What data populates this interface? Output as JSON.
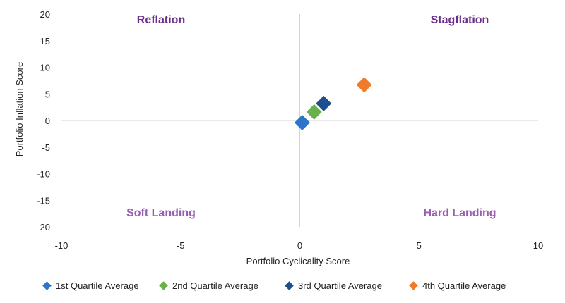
{
  "chart_data": {
    "type": "scatter",
    "xlabel": "Portfolio Cyclicality Score",
    "ylabel": "Portfolio Inflation Score",
    "xlim": [
      -10,
      10
    ],
    "ylim": [
      -20,
      20
    ],
    "x_ticks": [
      -10,
      -5,
      0,
      5,
      10
    ],
    "y_ticks": [
      20,
      15,
      10,
      5,
      0,
      -5,
      -10,
      -15,
      -20
    ],
    "quadrant_labels": {
      "top_left": "Reflation",
      "top_right": "Stagflation",
      "bottom_left": "Soft Landing",
      "bottom_right": "Hard Landing"
    },
    "grid": false,
    "legend_position": "bottom",
    "series": [
      {
        "name": "1st Quartile Average",
        "color": "#2e75c9",
        "x": 0.1,
        "y": -0.4
      },
      {
        "name": "2nd Quartile Average",
        "color": "#6ab04c",
        "x": 0.6,
        "y": 1.6
      },
      {
        "name": "3rd Quartile Average",
        "color": "#1c4f91",
        "x": 1.0,
        "y": 3.2
      },
      {
        "name": "4th Quartile Average",
        "color": "#f07b2b",
        "x": 2.7,
        "y": 6.7
      }
    ]
  }
}
